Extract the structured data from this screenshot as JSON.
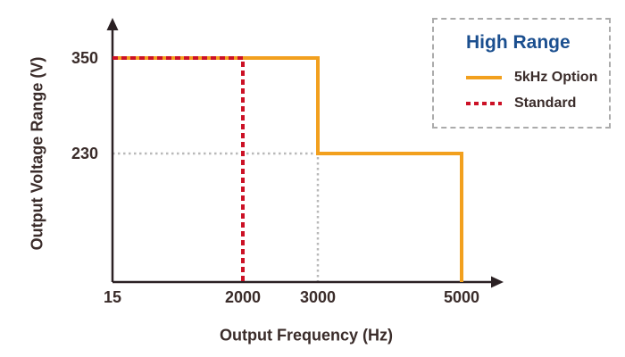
{
  "chart_data": {
    "type": "line",
    "step": true,
    "xlabel": "Output Frequency (Hz)",
    "ylabel": "Output Voltage Range (V)",
    "x_ticks": [
      15,
      2000,
      3000,
      5000
    ],
    "y_ticks": [
      350,
      230
    ],
    "series": [
      {
        "name": "5kHz Option",
        "color": "#f2a01e",
        "line_style": "solid",
        "points": [
          [
            15,
            350
          ],
          [
            3000,
            350
          ],
          [
            3000,
            230
          ],
          [
            5000,
            230
          ],
          [
            5000,
            0
          ]
        ]
      },
      {
        "name": "Standard",
        "color": "#cc1126",
        "line_style": "dashed",
        "points": [
          [
            15,
            350
          ],
          [
            2000,
            350
          ],
          [
            2000,
            0
          ]
        ]
      }
    ],
    "guide_lines": [
      {
        "name": "230V-3000Hz-guide",
        "color": "#b9b9b9",
        "line_style": "dotted",
        "points": [
          [
            15,
            230
          ],
          [
            3000,
            230
          ],
          [
            3000,
            0
          ]
        ]
      }
    ],
    "legend": {
      "title": "High Range",
      "title_color": "#1b4f8f",
      "position": "top-right",
      "border_style": "dashed",
      "entries": [
        {
          "label": "5kHz Option",
          "color": "#f2a01e",
          "line_style": "solid"
        },
        {
          "label": "Standard",
          "color": "#cc1126",
          "line_style": "dashed"
        }
      ]
    },
    "colors": {
      "axis": "#2b2124",
      "text": "#3a2c2a",
      "guide": "#b9b9b9",
      "legend_border": "#ababab",
      "background": "#ffffff"
    }
  }
}
